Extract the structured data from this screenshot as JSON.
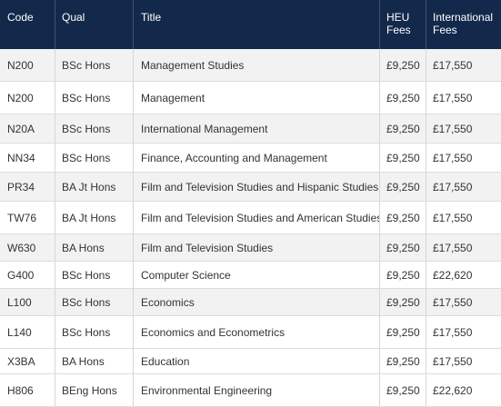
{
  "table": {
    "headers": {
      "code": "Code",
      "qual": "Qual",
      "title": "Title",
      "heu_fees": "HEU Fees",
      "international_fees": "International Fees"
    },
    "rows": [
      {
        "code": "N200",
        "qual": "BSc Hons",
        "title": "Management Studies",
        "heu": "£9,250",
        "intl": "£17,550"
      },
      {
        "code": "N200",
        "qual": "BSc Hons",
        "title": "Management",
        "heu": "£9,250",
        "intl": "£17,550"
      },
      {
        "code": "N20A",
        "qual": "BSc Hons",
        "title": "International Management",
        "heu": "£9,250",
        "intl": "£17,550"
      },
      {
        "code": "NN34",
        "qual": "BSc Hons",
        "title": "Finance, Accounting and Management",
        "heu": "£9,250",
        "intl": "£17,550"
      },
      {
        "code": "PR34",
        "qual": "BA Jt Hons",
        "title": "Film and Television Studies and Hispanic Studies",
        "heu": "£9,250",
        "intl": "£17,550"
      },
      {
        "code": "TW76",
        "qual": "BA Jt Hons",
        "title": "Film and Television Studies and American Studies",
        "heu": "£9,250",
        "intl": "£17,550"
      },
      {
        "code": "W630",
        "qual": "BA Hons",
        "title": "Film and Television Studies",
        "heu": "£9,250",
        "intl": "£17,550"
      },
      {
        "code": "G400",
        "qual": "BSc Hons",
        "title": "Computer Science",
        "heu": "£9,250",
        "intl": "£22,620"
      },
      {
        "code": "L100",
        "qual": "BSc Hons",
        "title": "Economics",
        "heu": "£9,250",
        "intl": "£17,550"
      },
      {
        "code": "L140",
        "qual": "BSc Hons",
        "title": "Economics and Econometrics",
        "heu": "£9,250",
        "intl": "£17,550"
      },
      {
        "code": "X3BA",
        "qual": "BA Hons",
        "title": "Education",
        "heu": "£9,250",
        "intl": "£17,550"
      },
      {
        "code": "H806",
        "qual": "BEng Hons",
        "title": "Environmental Engineering",
        "heu": "£9,250",
        "intl": "£22,620"
      }
    ]
  },
  "colors": {
    "header_bg": "#13294b",
    "header_text": "#ffffff",
    "row_shade": "#f2f2f2"
  }
}
